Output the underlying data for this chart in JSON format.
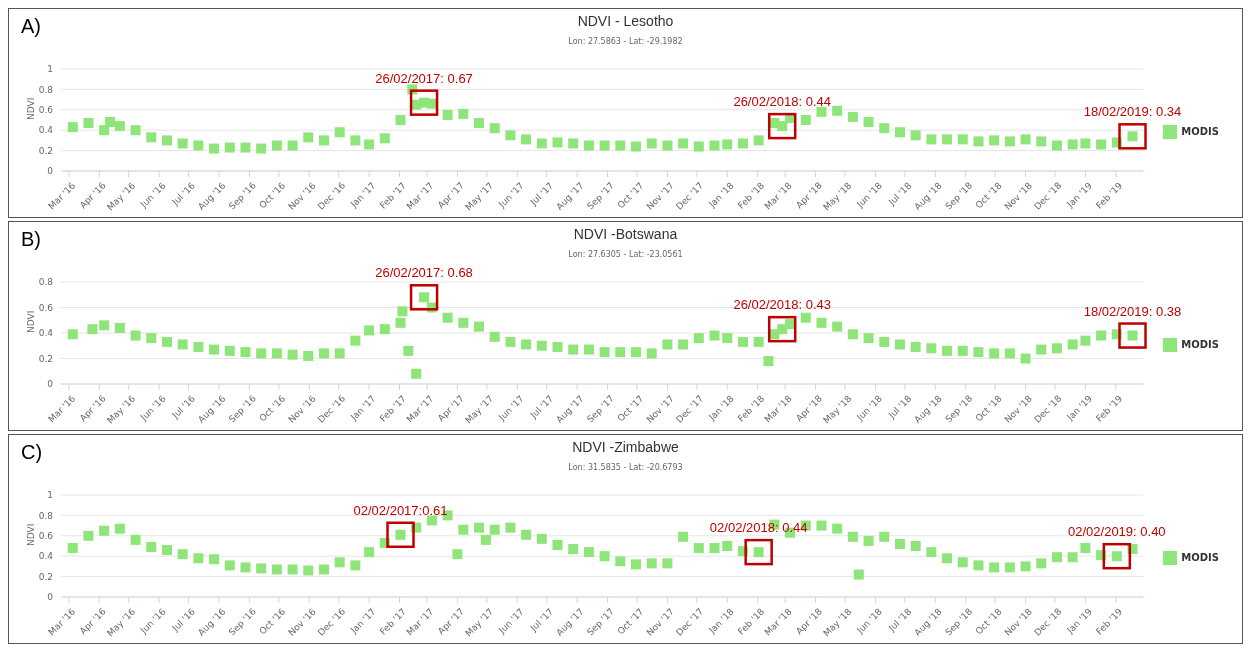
{
  "chart_data": [
    {
      "type": "scatter",
      "title": "NDVI - Lesotho",
      "subtitle": "Lon: 27.5863 - Lat: -29.1982",
      "ylabel": "NDVI",
      "annotations": [
        "A)",
        {
          "text": "26/02/2017: 0.67",
          "x": "2017-02-26",
          "y": 0.67
        },
        {
          "text": "26/02/2018: 0.44",
          "x": "2018-02-26",
          "y": 0.44
        },
        {
          "text": "18/02/2019: 0.34",
          "x": "2019-02-18",
          "y": 0.34
        }
      ],
      "xlim": [
        "2016-02-22",
        "2019-03-01"
      ],
      "xticks": [
        {
          "value": "2016-03-01",
          "label": "Mar '16"
        },
        {
          "value": "2016-04-01",
          "label": "Apr '16"
        },
        {
          "value": "2016-05-01",
          "label": "May '16"
        },
        {
          "value": "2016-06-01",
          "label": "Jun '16"
        },
        {
          "value": "2016-07-01",
          "label": "Jul '16"
        },
        {
          "value": "2016-08-01",
          "label": "Aug '16"
        },
        {
          "value": "2016-09-01",
          "label": "Sep '16"
        },
        {
          "value": "2016-10-01",
          "label": "Oct '16"
        },
        {
          "value": "2016-11-01",
          "label": "Nov '16"
        },
        {
          "value": "2016-12-01",
          "label": "Dec '16"
        },
        {
          "value": "2017-01-01",
          "label": "Jan '17"
        },
        {
          "value": "2017-02-01",
          "label": "Feb '17"
        },
        {
          "value": "2017-03-01",
          "label": "Mar '17"
        },
        {
          "value": "2017-04-01",
          "label": "Apr '17"
        },
        {
          "value": "2017-05-01",
          "label": "May '17"
        },
        {
          "value": "2017-06-01",
          "label": "Jun '17"
        },
        {
          "value": "2017-07-01",
          "label": "Jul '17"
        },
        {
          "value": "2017-08-01",
          "label": "Aug '17"
        },
        {
          "value": "2017-09-01",
          "label": "Sep '17"
        },
        {
          "value": "2017-10-01",
          "label": "Oct '17"
        },
        {
          "value": "2017-11-01",
          "label": "Nov '17"
        },
        {
          "value": "2017-12-01",
          "label": "Dec '17"
        },
        {
          "value": "2018-01-01",
          "label": "Jan '18"
        },
        {
          "value": "2018-02-01",
          "label": "Feb '18"
        },
        {
          "value": "2018-03-01",
          "label": "Mar '18"
        },
        {
          "value": "2018-04-01",
          "label": "Apr '18"
        },
        {
          "value": "2018-05-01",
          "label": "May '18"
        },
        {
          "value": "2018-06-01",
          "label": "Jun '18"
        },
        {
          "value": "2018-07-01",
          "label": "Jul '18"
        },
        {
          "value": "2018-08-01",
          "label": "Aug '18"
        },
        {
          "value": "2018-09-01",
          "label": "Sep '18"
        },
        {
          "value": "2018-10-01",
          "label": "Oct '18"
        },
        {
          "value": "2018-11-01",
          "label": "Nov '18"
        },
        {
          "value": "2018-12-01",
          "label": "Dec '18"
        },
        {
          "value": "2019-01-01",
          "label": "Jan '19"
        },
        {
          "value": "2019-02-01",
          "label": "Feb '19"
        }
      ],
      "ylim": [
        0,
        1
      ],
      "yticks": [
        0,
        0.2,
        0.4,
        0.6,
        0.8,
        1
      ],
      "grid": "y",
      "legend": "right",
      "marker": "square",
      "series": [
        {
          "name": "MODIS",
          "color": "#8ee57a",
          "x": [
            "2016-03-05",
            "2016-03-21",
            "2016-04-06",
            "2016-04-12",
            "2016-04-22",
            "2016-05-08",
            "2016-05-24",
            "2016-06-09",
            "2016-06-25",
            "2016-07-11",
            "2016-07-27",
            "2016-08-12",
            "2016-08-28",
            "2016-09-13",
            "2016-09-29",
            "2016-10-15",
            "2016-10-31",
            "2016-11-16",
            "2016-12-02",
            "2016-12-18",
            "2017-01-01",
            "2017-01-17",
            "2017-02-02",
            "2017-02-14",
            "2017-02-18",
            "2017-02-26",
            "2017-03-06",
            "2017-03-22",
            "2017-04-07",
            "2017-04-23",
            "2017-05-09",
            "2017-05-25",
            "2017-06-10",
            "2017-06-26",
            "2017-07-12",
            "2017-07-28",
            "2017-08-13",
            "2017-08-29",
            "2017-09-14",
            "2017-09-30",
            "2017-10-16",
            "2017-11-01",
            "2017-11-17",
            "2017-12-03",
            "2017-12-19",
            "2018-01-01",
            "2018-01-17",
            "2018-02-02",
            "2018-02-18",
            "2018-02-26",
            "2018-03-06",
            "2018-03-22",
            "2018-04-07",
            "2018-04-23",
            "2018-05-09",
            "2018-05-25",
            "2018-06-10",
            "2018-06-26",
            "2018-07-12",
            "2018-07-28",
            "2018-08-13",
            "2018-08-29",
            "2018-09-14",
            "2018-09-30",
            "2018-10-16",
            "2018-11-01",
            "2018-11-17",
            "2018-12-03",
            "2018-12-19",
            "2019-01-01",
            "2019-01-17",
            "2019-02-02",
            "2019-02-18"
          ],
          "values": [
            0.43,
            0.47,
            0.4,
            0.48,
            0.44,
            0.4,
            0.33,
            0.3,
            0.27,
            0.25,
            0.22,
            0.23,
            0.23,
            0.22,
            0.25,
            0.25,
            0.33,
            0.3,
            0.38,
            0.3,
            0.26,
            0.32,
            0.5,
            0.8,
            0.65,
            0.67,
            0.66,
            0.55,
            0.56,
            0.47,
            0.42,
            0.35,
            0.31,
            0.27,
            0.28,
            0.27,
            0.25,
            0.25,
            0.25,
            0.24,
            0.27,
            0.25,
            0.27,
            0.24,
            0.25,
            0.26,
            0.27,
            0.3,
            0.47,
            0.44,
            0.52,
            0.5,
            0.58,
            0.59,
            0.53,
            0.48,
            0.42,
            0.38,
            0.35,
            0.31,
            0.31,
            0.31,
            0.29,
            0.3,
            0.29,
            0.31,
            0.29,
            0.25,
            0.26,
            0.27,
            0.26,
            0.28,
            0.34
          ]
        }
      ]
    },
    {
      "type": "scatter",
      "title": "NDVI -Botswana",
      "subtitle": "Lon: 27.6305 - Lat: -23.0561",
      "ylabel": "NDVI",
      "annotations": [
        "B)",
        {
          "text": "26/02/2017: 0.68",
          "x": "2017-02-26",
          "y": 0.68
        },
        {
          "text": "26/02/2018: 0.43",
          "x": "2018-02-26",
          "y": 0.43
        },
        {
          "text": "18/02/2019: 0.38",
          "x": "2019-02-18",
          "y": 0.38
        }
      ],
      "xlim": [
        "2016-02-22",
        "2019-03-01"
      ],
      "xticks": [
        {
          "value": "2016-03-01",
          "label": "Mar '16"
        },
        {
          "value": "2016-04-01",
          "label": "Apr '16"
        },
        {
          "value": "2016-05-01",
          "label": "May '16"
        },
        {
          "value": "2016-06-01",
          "label": "Jun '16"
        },
        {
          "value": "2016-07-01",
          "label": "Jul '16"
        },
        {
          "value": "2016-08-01",
          "label": "Aug '16"
        },
        {
          "value": "2016-09-01",
          "label": "Sep '16"
        },
        {
          "value": "2016-10-01",
          "label": "Oct '16"
        },
        {
          "value": "2016-11-01",
          "label": "Nov '16"
        },
        {
          "value": "2016-12-01",
          "label": "Dec '16"
        },
        {
          "value": "2017-01-01",
          "label": "Jan '17"
        },
        {
          "value": "2017-02-01",
          "label": "Feb '17"
        },
        {
          "value": "2017-03-01",
          "label": "Mar '17"
        },
        {
          "value": "2017-04-01",
          "label": "Apr '17"
        },
        {
          "value": "2017-05-01",
          "label": "May '17"
        },
        {
          "value": "2017-06-01",
          "label": "Jun '17"
        },
        {
          "value": "2017-07-01",
          "label": "Jul '17"
        },
        {
          "value": "2017-08-01",
          "label": "Aug '17"
        },
        {
          "value": "2017-09-01",
          "label": "Sep '17"
        },
        {
          "value": "2017-10-01",
          "label": "Oct '17"
        },
        {
          "value": "2017-11-01",
          "label": "Nov '17"
        },
        {
          "value": "2017-12-01",
          "label": "Dec '17"
        },
        {
          "value": "2018-01-01",
          "label": "Jan '18"
        },
        {
          "value": "2018-02-01",
          "label": "Feb '18"
        },
        {
          "value": "2018-03-01",
          "label": "Mar '18"
        },
        {
          "value": "2018-04-01",
          "label": "Apr '18"
        },
        {
          "value": "2018-05-01",
          "label": "May '18"
        },
        {
          "value": "2018-06-01",
          "label": "Jun '18"
        },
        {
          "value": "2018-07-01",
          "label": "Jul '18"
        },
        {
          "value": "2018-08-01",
          "label": "Aug '18"
        },
        {
          "value": "2018-09-01",
          "label": "Sep '18"
        },
        {
          "value": "2018-10-01",
          "label": "Oct '18"
        },
        {
          "value": "2018-11-01",
          "label": "Nov '18"
        },
        {
          "value": "2018-12-01",
          "label": "Dec '18"
        },
        {
          "value": "2019-01-01",
          "label": "Jan '19"
        },
        {
          "value": "2019-02-01",
          "label": "Feb '19"
        }
      ],
      "ylim": [
        0,
        0.8
      ],
      "yticks": [
        0,
        0.2,
        0.4,
        0.6,
        0.8
      ],
      "grid": "y",
      "legend": "right",
      "marker": "square",
      "series": [
        {
          "name": "MODIS",
          "color": "#8ee57a",
          "x": [
            "2016-03-05",
            "2016-03-25",
            "2016-04-06",
            "2016-04-22",
            "2016-05-08",
            "2016-05-24",
            "2016-06-09",
            "2016-06-25",
            "2016-07-11",
            "2016-07-27",
            "2016-08-12",
            "2016-08-28",
            "2016-09-13",
            "2016-09-29",
            "2016-10-15",
            "2016-10-31",
            "2016-11-16",
            "2016-12-02",
            "2016-12-18",
            "2017-01-01",
            "2017-01-17",
            "2017-02-02",
            "2017-02-04",
            "2017-02-10",
            "2017-02-18",
            "2017-02-26",
            "2017-03-06",
            "2017-03-22",
            "2017-04-07",
            "2017-04-23",
            "2017-05-09",
            "2017-05-25",
            "2017-06-10",
            "2017-06-26",
            "2017-07-12",
            "2017-07-28",
            "2017-08-13",
            "2017-08-29",
            "2017-09-14",
            "2017-09-30",
            "2017-10-16",
            "2017-11-01",
            "2017-11-17",
            "2017-12-03",
            "2017-12-19",
            "2018-01-01",
            "2018-01-17",
            "2018-02-02",
            "2018-02-12",
            "2018-02-18",
            "2018-02-26",
            "2018-03-06",
            "2018-03-22",
            "2018-04-07",
            "2018-04-23",
            "2018-05-09",
            "2018-05-25",
            "2018-06-10",
            "2018-06-26",
            "2018-07-12",
            "2018-07-28",
            "2018-08-13",
            "2018-08-29",
            "2018-09-14",
            "2018-09-30",
            "2018-10-16",
            "2018-11-01",
            "2018-11-17",
            "2018-12-03",
            "2018-12-19",
            "2019-01-01",
            "2019-01-17",
            "2019-02-02",
            "2019-02-18"
          ],
          "values": [
            0.39,
            0.43,
            0.46,
            0.44,
            0.38,
            0.36,
            0.33,
            0.31,
            0.29,
            0.27,
            0.26,
            0.25,
            0.24,
            0.24,
            0.23,
            0.22,
            0.24,
            0.24,
            0.34,
            0.42,
            0.43,
            0.48,
            0.57,
            0.26,
            0.08,
            0.68,
            0.6,
            0.52,
            0.48,
            0.45,
            0.37,
            0.33,
            0.31,
            0.3,
            0.29,
            0.27,
            0.27,
            0.25,
            0.25,
            0.25,
            0.24,
            0.31,
            0.31,
            0.36,
            0.38,
            0.36,
            0.33,
            0.33,
            0.18,
            0.39,
            0.43,
            0.47,
            0.52,
            0.48,
            0.45,
            0.39,
            0.36,
            0.33,
            0.31,
            0.29,
            0.28,
            0.26,
            0.26,
            0.25,
            0.24,
            0.24,
            0.2,
            0.27,
            0.28,
            0.31,
            0.34,
            0.38,
            0.39,
            0.38
          ]
        }
      ]
    },
    {
      "type": "scatter",
      "title": "NDVI -Zimbabwe",
      "subtitle": "Lon: 31.5835 - Lat: -20.6793",
      "ylabel": "NDVI",
      "annotations": [
        "C)",
        {
          "text": "02/02/2017:0.61",
          "x": "2017-02-02",
          "y": 0.61
        },
        {
          "text": "02/02/2018: 0.44",
          "x": "2018-02-02",
          "y": 0.44
        },
        {
          "text": "02/02/2019: 0.40",
          "x": "2019-02-02",
          "y": 0.4
        }
      ],
      "xlim": [
        "2016-02-22",
        "2019-03-01"
      ],
      "xticks": [
        {
          "value": "2016-03-01",
          "label": "Mar '16"
        },
        {
          "value": "2016-04-01",
          "label": "Apr '16"
        },
        {
          "value": "2016-05-01",
          "label": "May '16"
        },
        {
          "value": "2016-06-01",
          "label": "Jun '16"
        },
        {
          "value": "2016-07-01",
          "label": "Jul '16"
        },
        {
          "value": "2016-08-01",
          "label": "Aug '16"
        },
        {
          "value": "2016-09-01",
          "label": "Sep '16"
        },
        {
          "value": "2016-10-01",
          "label": "Oct '16"
        },
        {
          "value": "2016-11-01",
          "label": "Nov '16"
        },
        {
          "value": "2016-12-01",
          "label": "Dec '16"
        },
        {
          "value": "2017-01-01",
          "label": "Jan '17"
        },
        {
          "value": "2017-02-01",
          "label": "Feb '17"
        },
        {
          "value": "2017-03-01",
          "label": "Mar '17"
        },
        {
          "value": "2017-04-01",
          "label": "Apr '17"
        },
        {
          "value": "2017-05-01",
          "label": "May '17"
        },
        {
          "value": "2017-06-01",
          "label": "Jun '17"
        },
        {
          "value": "2017-07-01",
          "label": "Jul '17"
        },
        {
          "value": "2017-08-01",
          "label": "Aug '17"
        },
        {
          "value": "2017-09-01",
          "label": "Sep '17"
        },
        {
          "value": "2017-10-01",
          "label": "Oct '17"
        },
        {
          "value": "2017-11-01",
          "label": "Nov '17"
        },
        {
          "value": "2017-12-01",
          "label": "Dec '17"
        },
        {
          "value": "2018-01-01",
          "label": "Jan '18"
        },
        {
          "value": "2018-02-01",
          "label": "Feb '18"
        },
        {
          "value": "2018-03-01",
          "label": "Mar '18"
        },
        {
          "value": "2018-04-01",
          "label": "Apr '18"
        },
        {
          "value": "2018-05-01",
          "label": "May '18"
        },
        {
          "value": "2018-06-01",
          "label": "Jun '18"
        },
        {
          "value": "2018-07-01",
          "label": "Jul '18"
        },
        {
          "value": "2018-08-01",
          "label": "Aug '18"
        },
        {
          "value": "2018-09-01",
          "label": "Sep '18"
        },
        {
          "value": "2018-10-01",
          "label": "Oct '18"
        },
        {
          "value": "2018-11-01",
          "label": "Nov '18"
        },
        {
          "value": "2018-12-01",
          "label": "Dec '18"
        },
        {
          "value": "2019-01-01",
          "label": "Jan '19"
        },
        {
          "value": "2019-02-01",
          "label": "Feb '19"
        }
      ],
      "ylim": [
        0,
        1
      ],
      "yticks": [
        0,
        0.2,
        0.4,
        0.6,
        0.8,
        1
      ],
      "grid": "y",
      "legend": "right",
      "marker": "square",
      "series": [
        {
          "name": "MODIS",
          "color": "#8ee57a",
          "x": [
            "2016-03-05",
            "2016-03-21",
            "2016-04-06",
            "2016-04-22",
            "2016-05-08",
            "2016-05-24",
            "2016-06-09",
            "2016-06-25",
            "2016-07-11",
            "2016-07-27",
            "2016-08-12",
            "2016-08-28",
            "2016-09-13",
            "2016-09-29",
            "2016-10-15",
            "2016-10-31",
            "2016-11-16",
            "2016-12-02",
            "2016-12-18",
            "2017-01-01",
            "2017-01-17",
            "2017-02-02",
            "2017-02-18",
            "2017-03-06",
            "2017-03-22",
            "2017-04-01",
            "2017-04-07",
            "2017-04-23",
            "2017-04-30",
            "2017-05-09",
            "2017-05-25",
            "2017-06-10",
            "2017-06-26",
            "2017-07-12",
            "2017-07-28",
            "2017-08-13",
            "2017-08-29",
            "2017-09-14",
            "2017-09-30",
            "2017-10-16",
            "2017-11-01",
            "2017-11-17",
            "2017-12-03",
            "2017-12-19",
            "2018-01-01",
            "2018-01-17",
            "2018-02-02",
            "2018-02-18",
            "2018-03-06",
            "2018-03-22",
            "2018-04-07",
            "2018-04-23",
            "2018-05-09",
            "2018-05-15",
            "2018-05-25",
            "2018-06-10",
            "2018-06-26",
            "2018-07-12",
            "2018-07-28",
            "2018-08-13",
            "2018-08-29",
            "2018-09-14",
            "2018-09-30",
            "2018-10-16",
            "2018-11-01",
            "2018-11-17",
            "2018-12-03",
            "2018-12-19",
            "2019-01-01",
            "2019-01-17",
            "2019-02-02",
            "2019-02-18"
          ],
          "values": [
            0.48,
            0.6,
            0.65,
            0.67,
            0.56,
            0.49,
            0.46,
            0.42,
            0.38,
            0.37,
            0.31,
            0.29,
            0.28,
            0.27,
            0.27,
            0.26,
            0.27,
            0.34,
            0.31,
            0.44,
            0.53,
            0.61,
            0.68,
            0.75,
            0.8,
            0.42,
            0.66,
            0.68,
            0.56,
            0.66,
            0.68,
            0.61,
            0.57,
            0.51,
            0.47,
            0.44,
            0.4,
            0.35,
            0.32,
            0.33,
            0.33,
            0.59,
            0.48,
            0.48,
            0.5,
            0.45,
            0.44,
            0.71,
            0.63,
            0.7,
            0.7,
            0.67,
            0.59,
            0.22,
            0.55,
            0.59,
            0.52,
            0.5,
            0.44,
            0.38,
            0.34,
            0.31,
            0.29,
            0.29,
            0.3,
            0.33,
            0.39,
            0.39,
            0.48,
            0.41,
            0.4,
            0.47
          ]
        }
      ]
    }
  ]
}
